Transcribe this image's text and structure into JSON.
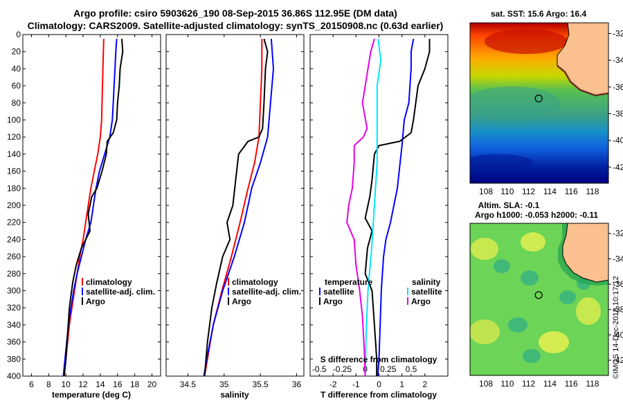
{
  "title": {
    "line1": "Argo profile: csiro 5903626_190 08-Sep-2015 36.86S 112.95E (DM data)",
    "line2": "Climatology: CARS2009. Satellite-adjusted climatology: synTS_20150908.nc (0.63d earlier)"
  },
  "watermark": "©IMOS 14-Dec-2018 10:17:12",
  "colors": {
    "climatology": "#ff0000",
    "satellite": "#0000ff",
    "argo": "#000000",
    "sat_salinity": "#00e5ff",
    "argo_salinity": "#e600e6"
  },
  "chart_data": [
    {
      "type": "line",
      "name": "temperature-panel",
      "xlabel": "temperature (deg C)",
      "ylabel": "",
      "xlim": [
        5,
        21
      ],
      "ylim": [
        400,
        0
      ],
      "xticks": [
        6,
        8,
        10,
        12,
        14,
        16,
        18,
        20
      ],
      "yticks": [
        0,
        20,
        40,
        60,
        80,
        100,
        120,
        140,
        160,
        180,
        200,
        220,
        240,
        260,
        280,
        300,
        320,
        340,
        360,
        380,
        400
      ],
      "legend": [
        "climatology",
        "satellite-adj. clim.",
        "Argo"
      ],
      "series": [
        {
          "name": "climatology",
          "color": "#ff0000",
          "points": [
            [
              14.4,
              5
            ],
            [
              14.35,
              20
            ],
            [
              14.3,
              40
            ],
            [
              14.25,
              60
            ],
            [
              14.2,
              80
            ],
            [
              14.15,
              100
            ],
            [
              14.0,
              120
            ],
            [
              13.7,
              140
            ],
            [
              13.3,
              160
            ],
            [
              12.9,
              180
            ],
            [
              12.6,
              200
            ],
            [
              12.3,
              220
            ],
            [
              12.0,
              240
            ],
            [
              11.6,
              260
            ],
            [
              11.3,
              280
            ],
            [
              11.0,
              300
            ],
            [
              10.7,
              320
            ],
            [
              10.4,
              340
            ],
            [
              10.2,
              360
            ],
            [
              10.0,
              380
            ],
            [
              9.8,
              400
            ]
          ]
        },
        {
          "name": "satellite-adj. clim.",
          "color": "#0000ff",
          "points": [
            [
              15.9,
              5
            ],
            [
              15.8,
              20
            ],
            [
              15.7,
              40
            ],
            [
              15.6,
              60
            ],
            [
              15.5,
              80
            ],
            [
              15.4,
              100
            ],
            [
              15.1,
              120
            ],
            [
              14.5,
              140
            ],
            [
              13.9,
              160
            ],
            [
              13.5,
              180
            ],
            [
              13.2,
              200
            ],
            [
              12.9,
              220
            ],
            [
              12.3,
              240
            ],
            [
              11.8,
              260
            ],
            [
              11.3,
              280
            ],
            [
              10.9,
              300
            ],
            [
              10.6,
              320
            ],
            [
              10.3,
              340
            ],
            [
              10.1,
              360
            ],
            [
              9.9,
              380
            ],
            [
              9.7,
              400
            ]
          ]
        },
        {
          "name": "Argo",
          "color": "#000000",
          "points": [
            [
              16.5,
              5
            ],
            [
              16.6,
              20
            ],
            [
              16.3,
              40
            ],
            [
              16.2,
              60
            ],
            [
              16.0,
              80
            ],
            [
              15.9,
              100
            ],
            [
              15.5,
              115
            ],
            [
              14.8,
              125
            ],
            [
              14.7,
              140
            ],
            [
              14.2,
              160
            ],
            [
              13.6,
              180
            ],
            [
              13.0,
              190
            ],
            [
              12.6,
              210
            ],
            [
              12.8,
              230
            ],
            [
              11.8,
              250
            ],
            [
              11.2,
              270
            ],
            [
              10.8,
              290
            ],
            [
              10.4,
              320
            ],
            [
              10.2,
              350
            ],
            [
              10.0,
              380
            ],
            [
              9.8,
              400
            ]
          ]
        }
      ]
    },
    {
      "type": "line",
      "name": "salinity-panel",
      "xlabel": "salinity",
      "xlim": [
        34.2,
        36.1
      ],
      "ylim": [
        400,
        0
      ],
      "xticks": [
        "34.5",
        "35",
        "35.5",
        "36"
      ],
      "legend": [
        "climatology",
        "satellite-adj. clim.",
        "Argo"
      ],
      "series": [
        {
          "name": "climatology",
          "color": "#ff0000",
          "points": [
            [
              35.52,
              5
            ],
            [
              35.52,
              40
            ],
            [
              35.5,
              80
            ],
            [
              35.48,
              120
            ],
            [
              35.42,
              150
            ],
            [
              35.33,
              180
            ],
            [
              35.22,
              220
            ],
            [
              35.1,
              260
            ],
            [
              34.97,
              300
            ],
            [
              34.85,
              340
            ],
            [
              34.77,
              380
            ],
            [
              34.73,
              400
            ]
          ]
        },
        {
          "name": "satellite-adj. clim.",
          "color": "#0000ff",
          "points": [
            [
              35.65,
              5
            ],
            [
              35.68,
              40
            ],
            [
              35.64,
              80
            ],
            [
              35.6,
              120
            ],
            [
              35.5,
              150
            ],
            [
              35.38,
              180
            ],
            [
              35.28,
              220
            ],
            [
              35.14,
              260
            ],
            [
              34.98,
              300
            ],
            [
              34.85,
              340
            ],
            [
              34.76,
              380
            ],
            [
              34.72,
              400
            ]
          ]
        },
        {
          "name": "Argo",
          "color": "#000000",
          "points": [
            [
              35.55,
              5
            ],
            [
              35.6,
              20
            ],
            [
              35.57,
              40
            ],
            [
              35.55,
              80
            ],
            [
              35.53,
              110
            ],
            [
              35.48,
              120
            ],
            [
              35.33,
              125
            ],
            [
              35.2,
              140
            ],
            [
              35.16,
              170
            ],
            [
              35.12,
              200
            ],
            [
              35.04,
              220
            ],
            [
              35.08,
              240
            ],
            [
              34.98,
              260
            ],
            [
              34.9,
              290
            ],
            [
              34.83,
              320
            ],
            [
              34.77,
              360
            ],
            [
              34.73,
              400
            ]
          ]
        }
      ]
    },
    {
      "type": "line",
      "name": "difference-panel",
      "xlabel": "T difference from climatology",
      "xlabel_top": "S difference from climatology",
      "xlim": [
        -3,
        3
      ],
      "ylim": [
        400,
        0
      ],
      "xticks": [
        "-2",
        "-1",
        "0",
        "1",
        "2"
      ],
      "xticks_s": [
        "-0.5",
        "-0.25",
        "0",
        "0.25",
        "0.5"
      ],
      "legend_temperature": {
        "title": "temperature",
        "items": [
          "satellite",
          "Argo"
        ]
      },
      "legend_salinity": {
        "title": "salinity",
        "items": [
          "satellite",
          "Argo"
        ]
      },
      "series": [
        {
          "name": "T satellite",
          "color": "#0000ff",
          "points": [
            [
              1.5,
              5
            ],
            [
              1.4,
              20
            ],
            [
              1.4,
              40
            ],
            [
              1.3,
              80
            ],
            [
              1.1,
              100
            ],
            [
              1.0,
              130
            ],
            [
              0.8,
              180
            ],
            [
              0.5,
              220
            ],
            [
              0.3,
              240
            ],
            [
              0.2,
              260
            ],
            [
              0.1,
              300
            ],
            [
              0.05,
              340
            ],
            [
              0.0,
              380
            ],
            [
              -0.05,
              400
            ]
          ]
        },
        {
          "name": "T Argo",
          "color": "#000000",
          "points": [
            [
              2.2,
              5
            ],
            [
              2.2,
              20
            ],
            [
              2.0,
              40
            ],
            [
              1.7,
              60
            ],
            [
              1.6,
              80
            ],
            [
              1.5,
              100
            ],
            [
              1.4,
              115
            ],
            [
              0.9,
              125
            ],
            [
              0.0,
              130
            ],
            [
              -0.2,
              140
            ],
            [
              -0.3,
              170
            ],
            [
              -0.4,
              190
            ],
            [
              -0.6,
              215
            ],
            [
              -0.3,
              230
            ],
            [
              -0.5,
              250
            ],
            [
              -0.6,
              280
            ],
            [
              -0.3,
              300
            ],
            [
              -0.2,
              340
            ],
            [
              -0.1,
              380
            ],
            [
              -0.1,
              400
            ]
          ]
        },
        {
          "name": "S satellite",
          "color": "#00e5ff",
          "points": [
            [
              0.14,
              5
            ],
            [
              0.17,
              30
            ],
            [
              0.13,
              60
            ],
            [
              0.13,
              100
            ],
            [
              0.13,
              150
            ],
            [
              0.1,
              200
            ],
            [
              0.07,
              250
            ],
            [
              0.03,
              300
            ],
            [
              0.01,
              350
            ],
            [
              0.0,
              400
            ]
          ]
        },
        {
          "name": "S Argo",
          "color": "#e600e6",
          "points": [
            [
              0.1,
              5
            ],
            [
              0.06,
              20
            ],
            [
              0.03,
              40
            ],
            [
              0.0,
              60
            ],
            [
              -0.03,
              80
            ],
            [
              0.02,
              110
            ],
            [
              -0.02,
              120
            ],
            [
              -0.12,
              130
            ],
            [
              -0.12,
              150
            ],
            [
              -0.14,
              180
            ],
            [
              -0.18,
              200
            ],
            [
              -0.2,
              220
            ],
            [
              -0.12,
              240
            ],
            [
              -0.1,
              270
            ],
            [
              -0.06,
              300
            ],
            [
              -0.03,
              330
            ],
            [
              -0.01,
              370
            ],
            [
              0.0,
              400
            ]
          ]
        }
      ]
    },
    {
      "type": "heatmap",
      "name": "sst-map",
      "title": "sat. SST: 15.6 Argo: 16.4",
      "xticks": [
        "108",
        "110",
        "112",
        "114",
        "116",
        "118"
      ],
      "yticks": [
        "-32",
        "-34",
        "-36",
        "-38",
        "-40",
        "-42"
      ],
      "xlim": [
        106.5,
        119.5
      ],
      "ylim": [
        -43.2,
        -31.2
      ],
      "marker": {
        "lon": 112.95,
        "lat": -36.86
      }
    },
    {
      "type": "heatmap",
      "name": "sla-map",
      "title_line1": "Altim. SLA: -0.1",
      "title_line2": "Argo h1000: -0.053 h2000: -0.11",
      "xticks": [
        "108",
        "110",
        "112",
        "114",
        "116",
        "118"
      ],
      "yticks": [
        "-32",
        "-34",
        "-36",
        "-38",
        "-40",
        "-42"
      ],
      "xlim": [
        106.5,
        119.5
      ],
      "ylim": [
        -43.2,
        -31.2
      ],
      "marker": {
        "lon": 112.95,
        "lat": -36.86
      }
    }
  ]
}
